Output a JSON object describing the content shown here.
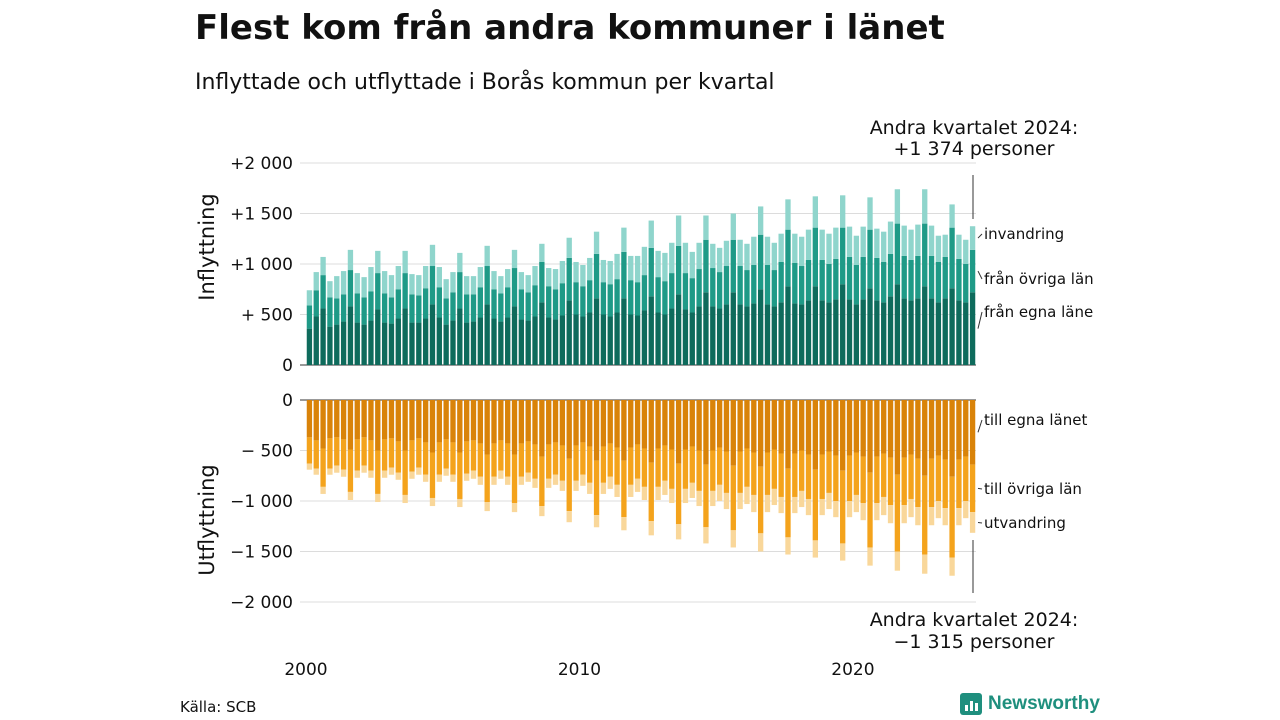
{
  "header": {
    "title": "Flest kom från andra kommuner i länet",
    "subtitle": "Inflyttade och utflyttade i Borås kommun per kvartal"
  },
  "source": "Källa: SCB",
  "brand": {
    "name": "Newsworthy",
    "color": "#1f8f7e"
  },
  "chart_data": [
    {
      "type": "bar",
      "stacked": true,
      "ylabel": "Inflyttning",
      "ylim": [
        0,
        2000
      ],
      "yticks": [
        0,
        500,
        1000,
        1500,
        2000
      ],
      "ytick_labels": [
        "0",
        "+  500",
        "+1 000",
        "+1 500",
        "+2 000"
      ],
      "grid": true,
      "x_start": "2000 Q1",
      "x_end": "2024 Q2",
      "xtick_labels": [
        "2000",
        "2010",
        "2020"
      ],
      "annotation": {
        "line1": "Andra kvartalet 2024:",
        "line2": "+1 374 personer"
      },
      "series": [
        {
          "name": "från egna läne",
          "color": "#0e6b5c",
          "values": [
            360,
            480,
            560,
            380,
            400,
            430,
            580,
            420,
            400,
            440,
            550,
            420,
            410,
            460,
            560,
            420,
            420,
            460,
            600,
            470,
            400,
            440,
            560,
            420,
            430,
            470,
            600,
            460,
            430,
            470,
            580,
            450,
            440,
            480,
            620,
            470,
            450,
            490,
            640,
            500,
            480,
            520,
            660,
            500,
            480,
            520,
            660,
            500,
            490,
            540,
            680,
            520,
            500,
            560,
            700,
            550,
            520,
            580,
            720,
            580,
            560,
            600,
            720,
            600,
            580,
            610,
            750,
            600,
            580,
            620,
            780,
            610,
            600,
            640,
            780,
            640,
            620,
            650,
            800,
            650,
            600,
            650,
            760,
            640,
            620,
            680,
            800,
            660,
            640,
            660,
            780,
            660,
            620,
            660,
            760,
            640,
            620,
            720
          ]
        },
        {
          "name": "från övriga län",
          "color": "#1f9a87",
          "values": [
            230,
            260,
            330,
            290,
            260,
            270,
            360,
            290,
            270,
            290,
            360,
            290,
            260,
            290,
            350,
            280,
            270,
            300,
            380,
            300,
            260,
            280,
            360,
            280,
            270,
            300,
            380,
            290,
            280,
            300,
            380,
            300,
            280,
            310,
            400,
            310,
            300,
            320,
            420,
            320,
            300,
            320,
            440,
            320,
            320,
            330,
            460,
            340,
            330,
            350,
            480,
            350,
            330,
            350,
            480,
            360,
            340,
            370,
            520,
            380,
            360,
            380,
            520,
            380,
            360,
            380,
            540,
            390,
            360,
            400,
            560,
            400,
            380,
            400,
            580,
            400,
            380,
            400,
            560,
            420,
            390,
            420,
            580,
            420,
            400,
            420,
            600,
            420,
            400,
            420,
            620,
            420,
            400,
            410,
            600,
            410,
            380,
            420
          ]
        },
        {
          "name": "invandring",
          "color": "#8fd5cc",
          "values": [
            150,
            180,
            180,
            160,
            220,
            230,
            200,
            200,
            200,
            240,
            220,
            220,
            220,
            230,
            220,
            200,
            200,
            220,
            210,
            200,
            190,
            200,
            190,
            180,
            180,
            200,
            200,
            180,
            170,
            180,
            180,
            170,
            170,
            190,
            180,
            180,
            200,
            220,
            200,
            200,
            210,
            220,
            220,
            220,
            230,
            250,
            240,
            240,
            260,
            280,
            270,
            260,
            280,
            300,
            300,
            300,
            260,
            260,
            240,
            240,
            240,
            250,
            260,
            260,
            260,
            280,
            280,
            280,
            270,
            280,
            300,
            290,
            290,
            300,
            310,
            300,
            300,
            310,
            320,
            300,
            290,
            300,
            320,
            290,
            300,
            320,
            340,
            300,
            300,
            310,
            340,
            300,
            260,
            220,
            230,
            240,
            240,
            234
          ]
        }
      ]
    },
    {
      "type": "bar",
      "stacked": true,
      "ylabel": "Utflyttning",
      "ylim": [
        -2000,
        0
      ],
      "yticks": [
        0,
        -500,
        -1000,
        -1500,
        -2000
      ],
      "ytick_labels": [
        "0",
        "−  500",
        "−1 000",
        "−1 500",
        "−2 000"
      ],
      "grid": true,
      "annotation": {
        "line1": "Andra kvartalet 2024:",
        "line2": "−1 315 personer"
      },
      "series": [
        {
          "name": "till egna länet",
          "color": "#d98309",
          "values": [
            -370,
            -400,
            -480,
            -380,
            -370,
            -390,
            -490,
            -390,
            -370,
            -400,
            -500,
            -390,
            -380,
            -410,
            -500,
            -400,
            -380,
            -420,
            -520,
            -420,
            -390,
            -420,
            -520,
            -410,
            -400,
            -430,
            -540,
            -430,
            -400,
            -430,
            -540,
            -430,
            -410,
            -440,
            -560,
            -440,
            -420,
            -450,
            -580,
            -450,
            -420,
            -460,
            -600,
            -460,
            -430,
            -470,
            -600,
            -470,
            -440,
            -480,
            -620,
            -480,
            -450,
            -490,
            -630,
            -490,
            -460,
            -500,
            -640,
            -500,
            -470,
            -510,
            -650,
            -510,
            -480,
            -520,
            -660,
            -520,
            -490,
            -530,
            -680,
            -530,
            -500,
            -540,
            -690,
            -540,
            -510,
            -550,
            -700,
            -550,
            -520,
            -560,
            -720,
            -560,
            -530,
            -570,
            -740,
            -570,
            -540,
            -580,
            -750,
            -580,
            -550,
            -590,
            -760,
            -590,
            -560,
            -640
          ]
        },
        {
          "name": "till övriga län",
          "color": "#f4a31c",
          "values": [
            -260,
            -280,
            -380,
            -300,
            -280,
            -300,
            -420,
            -310,
            -280,
            -300,
            -430,
            -310,
            -290,
            -310,
            -440,
            -310,
            -290,
            -320,
            -450,
            -320,
            -290,
            -320,
            -460,
            -320,
            -300,
            -330,
            -470,
            -330,
            -300,
            -330,
            -480,
            -330,
            -310,
            -340,
            -490,
            -340,
            -320,
            -350,
            -520,
            -350,
            -320,
            -360,
            -540,
            -360,
            -330,
            -370,
            -560,
            -370,
            -340,
            -380,
            -580,
            -380,
            -350,
            -390,
            -600,
            -390,
            -360,
            -400,
            -620,
            -400,
            -370,
            -410,
            -640,
            -410,
            -380,
            -420,
            -660,
            -420,
            -390,
            -430,
            -680,
            -430,
            -400,
            -440,
            -700,
            -440,
            -410,
            -450,
            -720,
            -450,
            -420,
            -460,
            -740,
            -460,
            -430,
            -470,
            -760,
            -470,
            -440,
            -480,
            -780,
            -480,
            -450,
            -480,
            -800,
            -480,
            -440,
            -470
          ]
        },
        {
          "name": "utvandring",
          "color": "#f9d79a",
          "values": [
            -60,
            -60,
            -70,
            -60,
            -70,
            -70,
            -80,
            -70,
            -70,
            -70,
            -80,
            -70,
            -70,
            -70,
            -80,
            -70,
            -70,
            -70,
            -80,
            -70,
            -70,
            -70,
            -80,
            -70,
            -80,
            -80,
            -90,
            -80,
            -80,
            -80,
            -90,
            -80,
            -90,
            -90,
            -100,
            -90,
            -100,
            -100,
            -110,
            -100,
            -110,
            -110,
            -120,
            -110,
            -120,
            -120,
            -130,
            -120,
            -130,
            -130,
            -140,
            -130,
            -140,
            -140,
            -150,
            -140,
            -150,
            -150,
            -160,
            -150,
            -160,
            -160,
            -170,
            -160,
            -170,
            -170,
            -180,
            -170,
            -160,
            -160,
            -170,
            -160,
            -160,
            -160,
            -170,
            -160,
            -160,
            -160,
            -170,
            -160,
            -170,
            -170,
            -180,
            -170,
            -180,
            -180,
            -190,
            -180,
            -180,
            -180,
            -190,
            -180,
            -170,
            -170,
            -180,
            -170,
            -170,
            -205
          ]
        }
      ]
    }
  ]
}
